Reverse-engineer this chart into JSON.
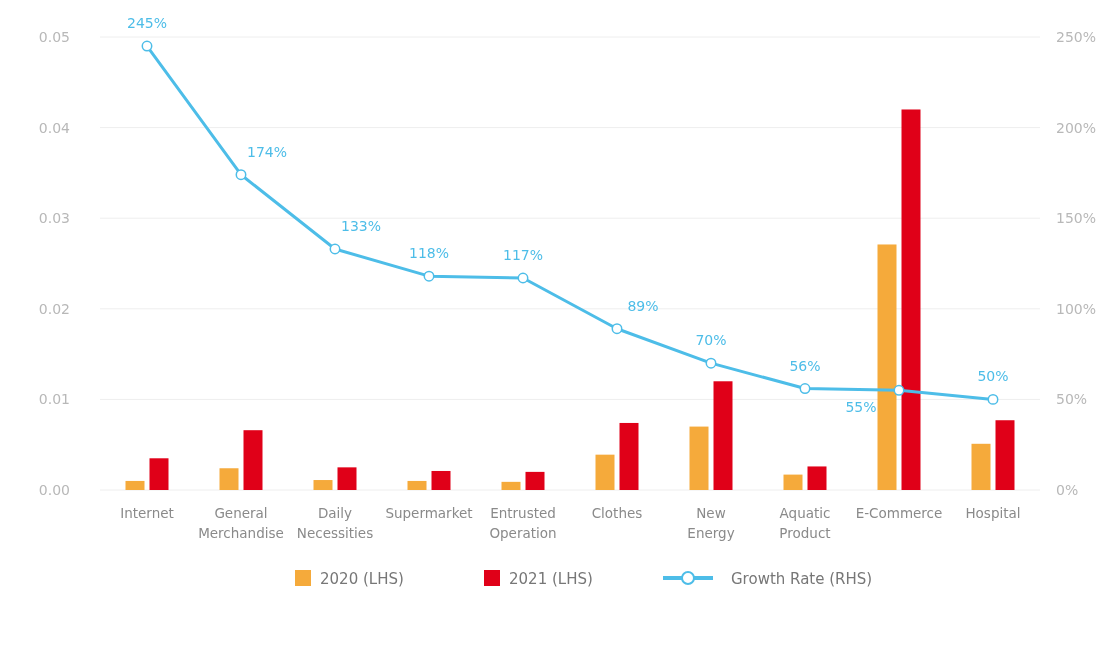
{
  "chart_data": {
    "type": "bar",
    "categories": [
      "Internet",
      "General Merchandise",
      "Daily Necessities",
      "Supermarket",
      "Entrusted Operation",
      "Clothes",
      "New Energy",
      "Aquatic Product",
      "E-Commerce",
      "Hospital"
    ],
    "series": [
      {
        "name": "2020 (LHS)",
        "color": "#f5aa3b",
        "values": [
          0.001,
          0.0024,
          0.0011,
          0.001,
          0.0009,
          0.0039,
          0.007,
          0.0017,
          0.0271,
          0.0051
        ]
      },
      {
        "name": "2021 (LHS)",
        "color": "#e00018",
        "values": [
          0.0035,
          0.0066,
          0.0025,
          0.0021,
          0.002,
          0.0074,
          0.012,
          0.0026,
          0.042,
          0.0077
        ]
      },
      {
        "name": "Growth Rate (RHS)",
        "type": "line",
        "axis": "y2",
        "color": "#4dbde8",
        "values": [
          245,
          174,
          133,
          118,
          117,
          89,
          70,
          56,
          55,
          50
        ],
        "value_labels": [
          "245%",
          "174%",
          "133%",
          "118%",
          "117%",
          "89%",
          "70%",
          "56%",
          "55%",
          "50%"
        ]
      }
    ],
    "ylim": [
      0,
      0.05
    ],
    "yticks": [
      {
        "value": 0,
        "label": "0.00"
      },
      {
        "value": 0.01,
        "label": "0.01"
      },
      {
        "value": 0.02,
        "label": "0.02"
      },
      {
        "value": 0.03,
        "label": "0.03"
      },
      {
        "value": 0.04,
        "label": "0.04"
      },
      {
        "value": 0.05,
        "label": "0.05"
      }
    ],
    "y2lim": [
      0,
      250
    ],
    "y2ticks": [
      {
        "value": 0,
        "label": "0%"
      },
      {
        "value": 50,
        "label": "50%"
      },
      {
        "value": 100,
        "label": "100%"
      },
      {
        "value": 150,
        "label": "150%"
      },
      {
        "value": 200,
        "label": "200%"
      },
      {
        "value": 250,
        "label": "250%"
      }
    ],
    "grid": "y",
    "legend": "bottom",
    "marker": "circle",
    "line_style": "solid"
  }
}
